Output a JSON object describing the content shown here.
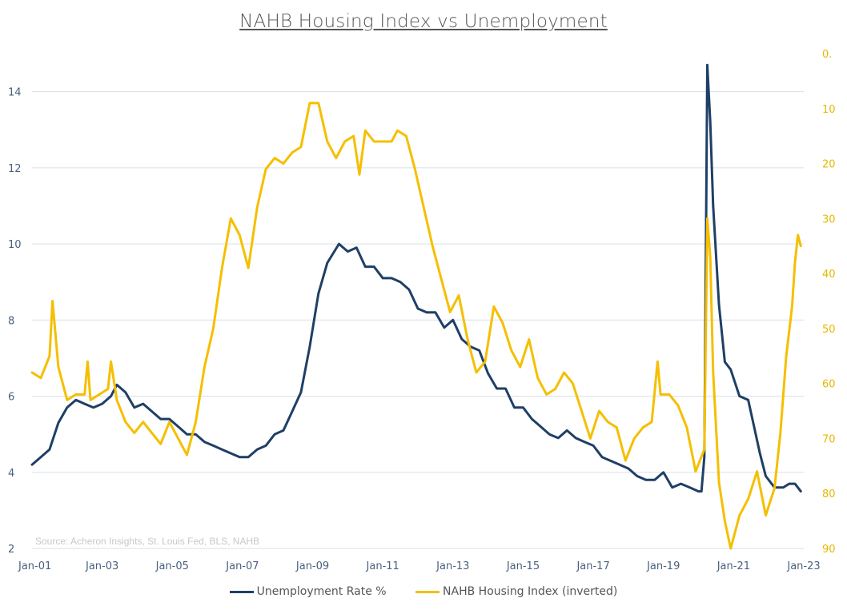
{
  "chart_data": {
    "type": "line",
    "title": "NAHB Housing Index vs Unemployment",
    "source_note": "Source: Acheron Insights, St. Louis Fed, BLS, NAHB",
    "x_ticks": [
      "Jan-01",
      "Jan-03",
      "Jan-05",
      "Jan-07",
      "Jan-09",
      "Jan-11",
      "Jan-13",
      "Jan-15",
      "Jan-17",
      "Jan-19",
      "Jan-21",
      "Jan-23"
    ],
    "x_range": [
      "Jan-01",
      "Jan-23"
    ],
    "y_left": {
      "range": [
        2,
        15
      ],
      "ticks": [
        "2",
        "4",
        "6",
        "8",
        "10",
        "12",
        "14"
      ],
      "labels": [
        2,
        4,
        6,
        8,
        10,
        12,
        14
      ]
    },
    "y_right": {
      "range": [
        0,
        90
      ],
      "inverted": true,
      "ticks": [
        "0.",
        "10",
        "20",
        "30",
        "40",
        "50",
        "60",
        "70",
        "80",
        "90"
      ],
      "labels": [
        0,
        10,
        20,
        30,
        40,
        50,
        60,
        70,
        80,
        90
      ]
    },
    "grid": "horizontal",
    "legend_position": "bottom",
    "series": [
      {
        "name": "Unemployment Rate %",
        "axis": "left",
        "color": "#1f3f66",
        "points": [
          [
            "2001-01",
            4.2
          ],
          [
            "2001-04",
            4.4
          ],
          [
            "2001-07",
            4.6
          ],
          [
            "2001-10",
            5.3
          ],
          [
            "2002-01",
            5.7
          ],
          [
            "2002-04",
            5.9
          ],
          [
            "2002-07",
            5.8
          ],
          [
            "2002-10",
            5.7
          ],
          [
            "2003-01",
            5.8
          ],
          [
            "2003-04",
            6.0
          ],
          [
            "2003-06",
            6.3
          ],
          [
            "2003-09",
            6.1
          ],
          [
            "2003-12",
            5.7
          ],
          [
            "2004-03",
            5.8
          ],
          [
            "2004-06",
            5.6
          ],
          [
            "2004-09",
            5.4
          ],
          [
            "2004-12",
            5.4
          ],
          [
            "2005-03",
            5.2
          ],
          [
            "2005-06",
            5.0
          ],
          [
            "2005-09",
            5.0
          ],
          [
            "2005-12",
            4.8
          ],
          [
            "2006-03",
            4.7
          ],
          [
            "2006-06",
            4.6
          ],
          [
            "2006-09",
            4.5
          ],
          [
            "2006-12",
            4.4
          ],
          [
            "2007-03",
            4.4
          ],
          [
            "2007-06",
            4.6
          ],
          [
            "2007-09",
            4.7
          ],
          [
            "2007-12",
            5.0
          ],
          [
            "2008-03",
            5.1
          ],
          [
            "2008-06",
            5.6
          ],
          [
            "2008-09",
            6.1
          ],
          [
            "2008-12",
            7.3
          ],
          [
            "2009-03",
            8.7
          ],
          [
            "2009-06",
            9.5
          ],
          [
            "2009-10",
            10.0
          ],
          [
            "2010-01",
            9.8
          ],
          [
            "2010-04",
            9.9
          ],
          [
            "2010-07",
            9.4
          ],
          [
            "2010-10",
            9.4
          ],
          [
            "2011-01",
            9.1
          ],
          [
            "2011-04",
            9.1
          ],
          [
            "2011-07",
            9.0
          ],
          [
            "2011-10",
            8.8
          ],
          [
            "2012-01",
            8.3
          ],
          [
            "2012-04",
            8.2
          ],
          [
            "2012-07",
            8.2
          ],
          [
            "2012-10",
            7.8
          ],
          [
            "2013-01",
            8.0
          ],
          [
            "2013-04",
            7.5
          ],
          [
            "2013-07",
            7.3
          ],
          [
            "2013-10",
            7.2
          ],
          [
            "2014-01",
            6.6
          ],
          [
            "2014-04",
            6.2
          ],
          [
            "2014-07",
            6.2
          ],
          [
            "2014-10",
            5.7
          ],
          [
            "2015-01",
            5.7
          ],
          [
            "2015-04",
            5.4
          ],
          [
            "2015-07",
            5.2
          ],
          [
            "2015-10",
            5.0
          ],
          [
            "2016-01",
            4.9
          ],
          [
            "2016-04",
            5.1
          ],
          [
            "2016-07",
            4.9
          ],
          [
            "2016-10",
            4.8
          ],
          [
            "2017-01",
            4.7
          ],
          [
            "2017-04",
            4.4
          ],
          [
            "2017-07",
            4.3
          ],
          [
            "2017-10",
            4.2
          ],
          [
            "2018-01",
            4.1
          ],
          [
            "2018-04",
            3.9
          ],
          [
            "2018-07",
            3.8
          ],
          [
            "2018-10",
            3.8
          ],
          [
            "2019-01",
            4.0
          ],
          [
            "2019-04",
            3.6
          ],
          [
            "2019-07",
            3.7
          ],
          [
            "2019-10",
            3.6
          ],
          [
            "2020-01",
            3.5
          ],
          [
            "2020-02",
            3.5
          ],
          [
            "2020-03",
            4.4
          ],
          [
            "2020-04",
            14.7
          ],
          [
            "2020-05",
            13.2
          ],
          [
            "2020-06",
            11.0
          ],
          [
            "2020-08",
            8.4
          ],
          [
            "2020-10",
            6.9
          ],
          [
            "2020-12",
            6.7
          ],
          [
            "2021-03",
            6.0
          ],
          [
            "2021-06",
            5.9
          ],
          [
            "2021-08",
            5.2
          ],
          [
            "2021-10",
            4.5
          ],
          [
            "2021-12",
            3.9
          ],
          [
            "2022-03",
            3.6
          ],
          [
            "2022-06",
            3.6
          ],
          [
            "2022-08",
            3.7
          ],
          [
            "2022-10",
            3.7
          ],
          [
            "2022-12",
            3.5
          ]
        ]
      },
      {
        "name": "NAHB Housing Index (inverted)",
        "axis": "right",
        "color": "#f5bf00",
        "points": [
          [
            "2001-01",
            58
          ],
          [
            "2001-04",
            59
          ],
          [
            "2001-07",
            55
          ],
          [
            "2001-08",
            45
          ],
          [
            "2001-10",
            57
          ],
          [
            "2002-01",
            63
          ],
          [
            "2002-04",
            62
          ],
          [
            "2002-07",
            62
          ],
          [
            "2002-08",
            56
          ],
          [
            "2002-09",
            63
          ],
          [
            "2002-12",
            62
          ],
          [
            "2003-03",
            61
          ],
          [
            "2003-04",
            56
          ],
          [
            "2003-06",
            63
          ],
          [
            "2003-09",
            67
          ],
          [
            "2003-12",
            69
          ],
          [
            "2004-03",
            67
          ],
          [
            "2004-06",
            69
          ],
          [
            "2004-09",
            71
          ],
          [
            "2004-12",
            67
          ],
          [
            "2005-03",
            70
          ],
          [
            "2005-06",
            73
          ],
          [
            "2005-09",
            67
          ],
          [
            "2005-12",
            57
          ],
          [
            "2006-03",
            50
          ],
          [
            "2006-06",
            39
          ],
          [
            "2006-09",
            30
          ],
          [
            "2006-12",
            33
          ],
          [
            "2007-03",
            39
          ],
          [
            "2007-06",
            28
          ],
          [
            "2007-09",
            21
          ],
          [
            "2007-12",
            19
          ],
          [
            "2008-03",
            20
          ],
          [
            "2008-06",
            18
          ],
          [
            "2008-09",
            17
          ],
          [
            "2008-12",
            9
          ],
          [
            "2009-03",
            9
          ],
          [
            "2009-06",
            16
          ],
          [
            "2009-09",
            19
          ],
          [
            "2009-12",
            16
          ],
          [
            "2010-03",
            15
          ],
          [
            "2010-05",
            22
          ],
          [
            "2010-07",
            14
          ],
          [
            "2010-10",
            16
          ],
          [
            "2011-01",
            16
          ],
          [
            "2011-04",
            16
          ],
          [
            "2011-06",
            14
          ],
          [
            "2011-09",
            15
          ],
          [
            "2011-12",
            21
          ],
          [
            "2012-03",
            28
          ],
          [
            "2012-06",
            35
          ],
          [
            "2012-09",
            41
          ],
          [
            "2012-12",
            47
          ],
          [
            "2013-03",
            44
          ],
          [
            "2013-06",
            52
          ],
          [
            "2013-09",
            58
          ],
          [
            "2013-12",
            56
          ],
          [
            "2014-03",
            46
          ],
          [
            "2014-06",
            49
          ],
          [
            "2014-09",
            54
          ],
          [
            "2014-12",
            57
          ],
          [
            "2015-03",
            52
          ],
          [
            "2015-06",
            59
          ],
          [
            "2015-09",
            62
          ],
          [
            "2015-12",
            61
          ],
          [
            "2016-03",
            58
          ],
          [
            "2016-06",
            60
          ],
          [
            "2016-09",
            65
          ],
          [
            "2016-12",
            70
          ],
          [
            "2017-03",
            65
          ],
          [
            "2017-06",
            67
          ],
          [
            "2017-09",
            68
          ],
          [
            "2017-12",
            74
          ],
          [
            "2018-03",
            70
          ],
          [
            "2018-06",
            68
          ],
          [
            "2018-09",
            67
          ],
          [
            "2018-11",
            56
          ],
          [
            "2018-12",
            62
          ],
          [
            "2019-03",
            62
          ],
          [
            "2019-06",
            64
          ],
          [
            "2019-09",
            68
          ],
          [
            "2019-12",
            76
          ],
          [
            "2020-03",
            72
          ],
          [
            "2020-04",
            30
          ],
          [
            "2020-05",
            37
          ],
          [
            "2020-06",
            58
          ],
          [
            "2020-08",
            78
          ],
          [
            "2020-10",
            85
          ],
          [
            "2020-12",
            90
          ],
          [
            "2021-03",
            84
          ],
          [
            "2021-06",
            81
          ],
          [
            "2021-09",
            76
          ],
          [
            "2021-12",
            84
          ],
          [
            "2022-03",
            79
          ],
          [
            "2022-05",
            69
          ],
          [
            "2022-07",
            55
          ],
          [
            "2022-09",
            46
          ],
          [
            "2022-10",
            38
          ],
          [
            "2022-11",
            33
          ],
          [
            "2022-12",
            35
          ]
        ]
      }
    ]
  }
}
